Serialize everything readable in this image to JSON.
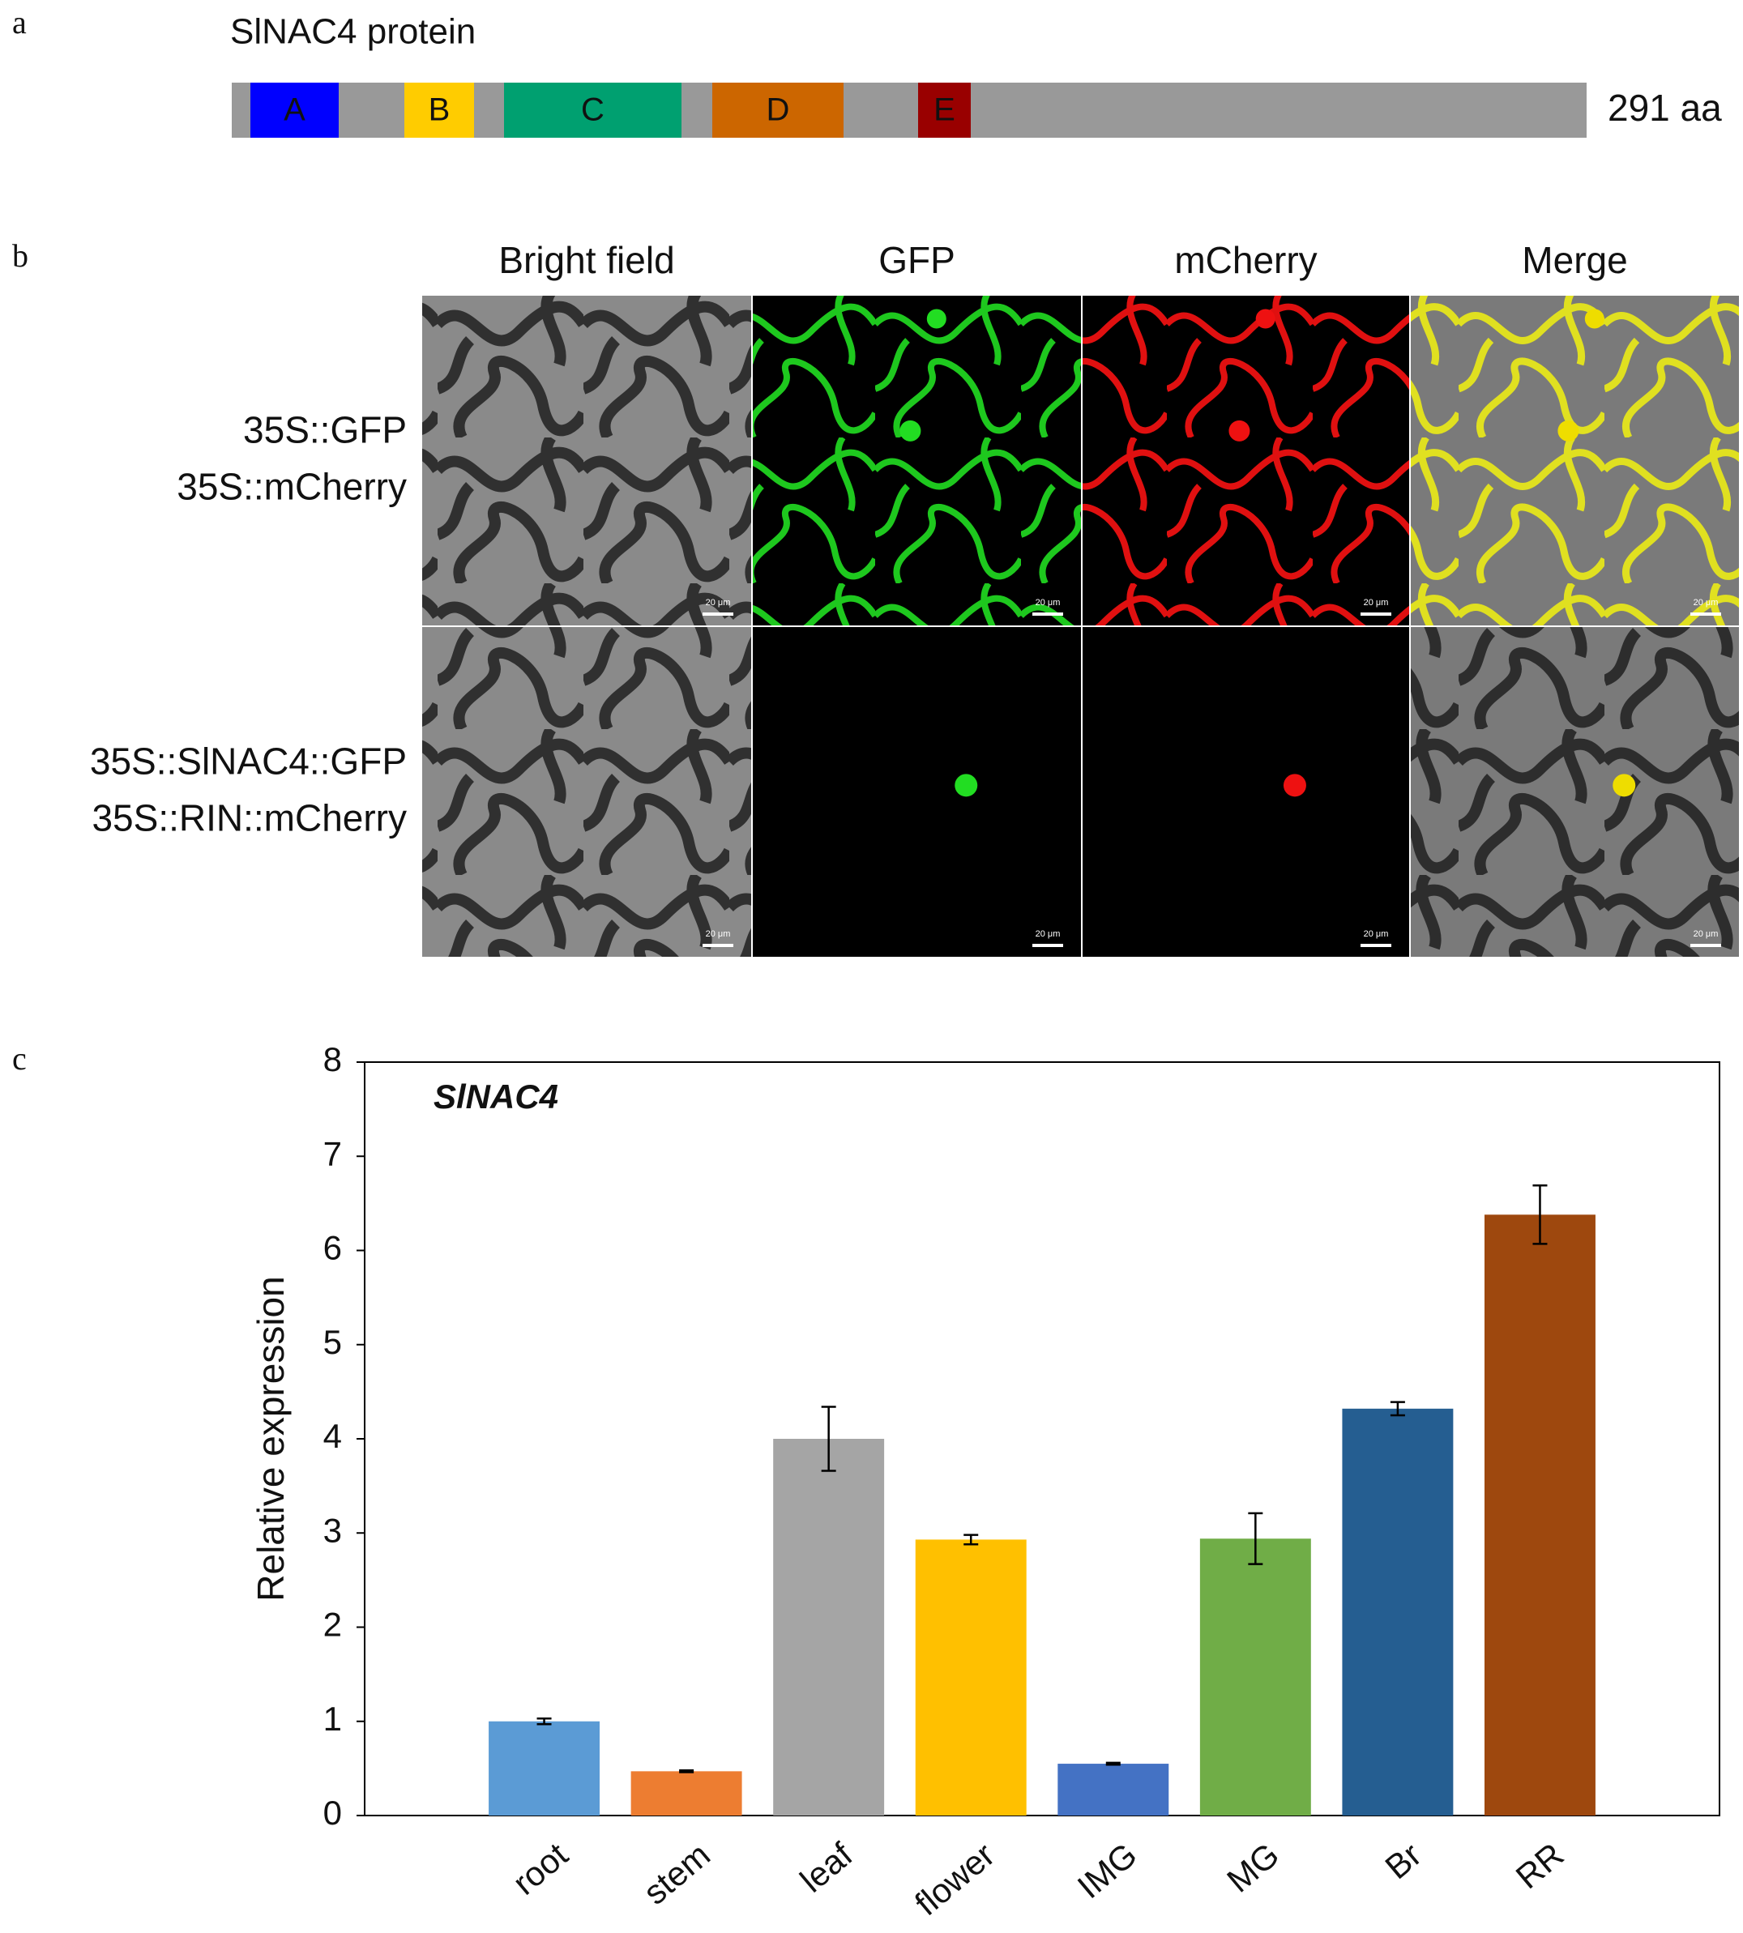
{
  "panel_labels": [
    "a",
    "b",
    "c"
  ],
  "protein": {
    "title": "SlNAC4 protein",
    "domains": [
      "A",
      "B",
      "C",
      "D",
      "E"
    ],
    "domain_colors": [
      "#0000ff",
      "#ffcc00",
      "#00a070",
      "#cc6600",
      "#990000"
    ],
    "length": "291 aa"
  },
  "localization": {
    "columns": [
      "Bright field",
      "GFP",
      "mCherry",
      "Merge"
    ],
    "rows": [
      [
        "35S::GFP",
        "35S::mCherry"
      ],
      [
        "35S::SlNAC4::GFP",
        "35S::RIN::mCherry"
      ]
    ],
    "scale_bar": "20 μm"
  },
  "chart_data": {
    "type": "bar",
    "title": "SlNAC4",
    "y_label": "Relative expression",
    "categories": [
      "root",
      "stem",
      "leaf",
      "flower",
      "IMG",
      "MG",
      "Br",
      "RR"
    ],
    "values": [
      1.0,
      0.47,
      4.0,
      2.93,
      0.55,
      2.94,
      4.32,
      6.38
    ],
    "errors": [
      0.03,
      0.01,
      0.34,
      0.05,
      0.01,
      0.27,
      0.07,
      0.31
    ],
    "colors": [
      "#5b9bd5",
      "#ed7d31",
      "#a5a5a5",
      "#ffc000",
      "#4472c4",
      "#70ad47",
      "#255e91",
      "#9e480e"
    ],
    "ylim": [
      0,
      8
    ],
    "yticks": [
      0,
      1,
      2,
      3,
      4,
      5,
      6,
      7,
      8
    ],
    "grid": false
  }
}
